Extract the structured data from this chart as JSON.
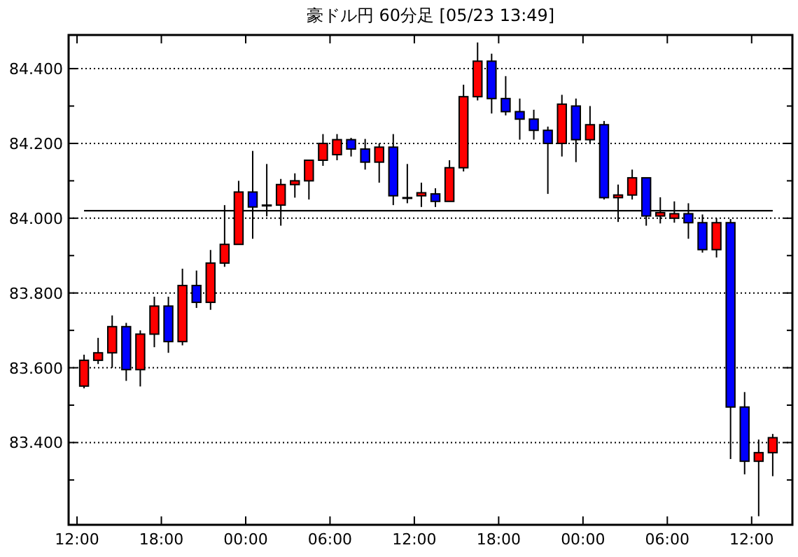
{
  "chart_data": {
    "type": "candlestick",
    "title": "豪ドル円 60分足 [05/23 13:49]",
    "x": [
      "--05-21T12:30",
      "--05-21T13:30",
      "--05-21T14:30",
      "--05-21T15:30",
      "--05-21T16:30",
      "--05-21T17:30",
      "--05-21T18:30",
      "--05-21T19:30",
      "--05-21T20:30",
      "--05-21T21:30",
      "--05-21T22:30",
      "--05-21T23:30",
      "--05-22T00:30",
      "--05-22T01:30",
      "--05-22T02:30",
      "--05-22T03:30",
      "--05-22T04:30",
      "--05-22T05:30",
      "--05-22T06:30",
      "--05-22T07:30",
      "--05-22T08:30",
      "--05-22T09:30",
      "--05-22T10:30",
      "--05-22T11:30",
      "--05-22T12:30",
      "--05-22T13:30",
      "--05-22T14:30",
      "--05-22T15:30",
      "--05-22T16:30",
      "--05-22T17:30",
      "--05-22T18:30",
      "--05-22T19:30",
      "--05-22T20:30",
      "--05-22T21:30",
      "--05-22T22:30",
      "--05-22T23:30",
      "--05-23T00:30",
      "--05-23T01:30",
      "--05-23T02:30",
      "--05-23T03:30",
      "--05-23T04:30",
      "--05-23T05:30",
      "--05-23T06:30",
      "--05-23T07:30",
      "--05-23T08:30",
      "--05-23T09:30",
      "--05-23T10:30",
      "--05-23T11:30",
      "--05-23T12:30",
      "--05-23T13:30"
    ],
    "ohlc": [
      [
        83.551,
        83.635,
        83.545,
        83.62
      ],
      [
        83.62,
        83.68,
        83.61,
        83.64
      ],
      [
        83.64,
        83.74,
        83.6,
        83.71
      ],
      [
        83.71,
        83.72,
        83.565,
        83.595
      ],
      [
        83.595,
        83.7,
        83.55,
        83.69
      ],
      [
        83.69,
        83.79,
        83.655,
        83.765
      ],
      [
        83.765,
        83.79,
        83.64,
        83.67
      ],
      [
        83.67,
        83.865,
        83.66,
        83.82
      ],
      [
        83.82,
        83.86,
        83.76,
        83.775
      ],
      [
        83.775,
        83.915,
        83.755,
        83.88
      ],
      [
        83.88,
        84.035,
        83.87,
        83.93
      ],
      [
        83.93,
        84.1,
        83.93,
        84.07
      ],
      [
        84.07,
        84.18,
        83.945,
        84.03
      ],
      [
        84.035,
        84.145,
        84.005,
        84.035
      ],
      [
        84.035,
        84.105,
        83.98,
        84.09
      ],
      [
        84.09,
        84.12,
        84.055,
        84.1
      ],
      [
        84.1,
        84.155,
        84.05,
        84.155
      ],
      [
        84.155,
        84.225,
        84.14,
        84.2
      ],
      [
        84.17,
        84.225,
        84.155,
        84.21
      ],
      [
        84.21,
        84.215,
        84.165,
        84.185
      ],
      [
        84.185,
        84.212,
        84.13,
        84.15
      ],
      [
        84.15,
        84.2,
        84.095,
        84.19
      ],
      [
        84.19,
        84.225,
        84.035,
        84.06
      ],
      [
        84.055,
        84.145,
        84.04,
        84.055
      ],
      [
        84.06,
        84.095,
        84.03,
        84.068
      ],
      [
        84.065,
        84.08,
        84.03,
        84.045
      ],
      [
        84.045,
        84.155,
        84.045,
        84.135
      ],
      [
        84.135,
        84.357,
        84.125,
        84.325
      ],
      [
        84.325,
        84.47,
        84.315,
        84.42
      ],
      [
        84.42,
        84.44,
        84.28,
        84.32
      ],
      [
        84.32,
        84.38,
        84.275,
        84.285
      ],
      [
        84.285,
        84.32,
        84.21,
        84.265
      ],
      [
        84.265,
        84.29,
        84.21,
        84.235
      ],
      [
        84.235,
        84.245,
        84.065,
        84.2
      ],
      [
        84.2,
        84.33,
        84.165,
        84.305
      ],
      [
        84.3,
        84.32,
        84.15,
        84.21
      ],
      [
        84.21,
        84.3,
        84.2,
        84.25
      ],
      [
        84.25,
        84.26,
        84.05,
        84.055
      ],
      [
        84.055,
        84.09,
        83.99,
        84.062
      ],
      [
        84.062,
        84.13,
        84.05,
        84.108
      ],
      [
        84.108,
        84.108,
        83.98,
        84.006
      ],
      [
        84.006,
        84.056,
        83.986,
        84.015
      ],
      [
        84.0,
        84.045,
        83.988,
        84.012
      ],
      [
        84.012,
        84.04,
        83.945,
        83.988
      ],
      [
        83.988,
        84.01,
        83.908,
        83.916
      ],
      [
        83.916,
        84.0,
        83.895,
        83.988
      ],
      [
        83.988,
        83.998,
        83.356,
        83.495
      ],
      [
        83.495,
        83.535,
        83.315,
        83.35
      ],
      [
        83.35,
        83.408,
        83.203,
        83.373
      ],
      [
        83.373,
        83.423,
        83.31,
        83.413
      ]
    ],
    "colors": [
      "#ff0000",
      "#ff0000",
      "#ff0000",
      "#0000ff",
      "#ff0000",
      "#ff0000",
      "#0000ff",
      "#ff0000",
      "#0000ff",
      "#ff0000",
      "#ff0000",
      "#ff0000",
      "#0000ff",
      "#ff0000",
      "#ff0000",
      "#ff0000",
      "#ff0000",
      "#ff0000",
      "#ff0000",
      "#0000ff",
      "#0000ff",
      "#ff0000",
      "#0000ff",
      "#ff0000",
      "#ff0000",
      "#0000ff",
      "#ff0000",
      "#ff0000",
      "#ff0000",
      "#0000ff",
      "#0000ff",
      "#0000ff",
      "#0000ff",
      "#0000ff",
      "#ff0000",
      "#0000ff",
      "#ff0000",
      "#0000ff",
      "#ff0000",
      "#ff0000",
      "#0000ff",
      "#ff0000",
      "#ff0000",
      "#0000ff",
      "#0000ff",
      "#ff0000",
      "#0000ff",
      "#0000ff",
      "#ff0000",
      "#ff0000"
    ],
    "xlim": [
      "--05-21T11:24",
      "--05-23T14:54"
    ],
    "xticks": [
      {
        "value": "--05-21T12:00",
        "label": "12:00"
      },
      {
        "value": "--05-21T18:00",
        "label": "18:00"
      },
      {
        "value": "--05-22T00:00",
        "label": "00:00"
      },
      {
        "value": "--05-22T06:00",
        "label": "06:00"
      },
      {
        "value": "--05-22T12:00",
        "label": "12:00"
      },
      {
        "value": "--05-22T18:00",
        "label": "18:00"
      },
      {
        "value": "--05-23T00:00",
        "label": "00:00"
      },
      {
        "value": "--05-23T06:00",
        "label": "06:00"
      },
      {
        "value": "--05-23T12:00",
        "label": "12:00"
      }
    ],
    "ylim": [
      83.18,
      84.49
    ],
    "yticks": [
      {
        "value": 83.3,
        "label": null
      },
      {
        "value": 83.4,
        "label": "83.400"
      },
      {
        "value": 83.5,
        "label": null
      },
      {
        "value": 83.6,
        "label": "83.600"
      },
      {
        "value": 83.7,
        "label": null
      },
      {
        "value": 83.8,
        "label": "83.800"
      },
      {
        "value": 83.9,
        "label": null
      },
      {
        "value": 84.0,
        "label": "84.000"
      },
      {
        "value": 84.1,
        "label": null
      },
      {
        "value": 84.2,
        "label": "84.200"
      },
      {
        "value": 84.3,
        "label": null
      },
      {
        "value": 84.4,
        "label": "84.400"
      }
    ],
    "grid": "y",
    "ref_lines": [
      {
        "axis": "y",
        "value": 84.02,
        "color": "#000000"
      }
    ]
  }
}
